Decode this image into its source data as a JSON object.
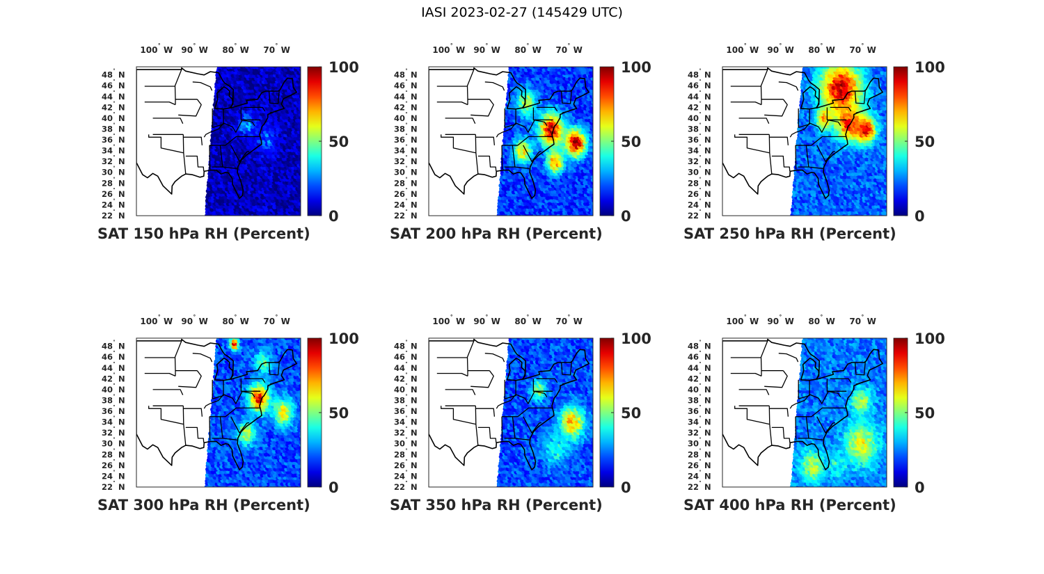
{
  "title": "IASI 2023-02-27 (145429 UTC)",
  "map": {
    "lon_labels": [
      {
        "deg": "100",
        "hemi": "W",
        "lon": -100
      },
      {
        "deg": "90",
        "hemi": "W",
        "lon": -90
      },
      {
        "deg": "80",
        "hemi": "W",
        "lon": -80
      },
      {
        "deg": "70",
        "hemi": "W",
        "lon": -70
      }
    ],
    "lat_labels": [
      {
        "deg": "48",
        "hemi": "N",
        "lat": 48
      },
      {
        "deg": "46",
        "hemi": "N",
        "lat": 46
      },
      {
        "deg": "44",
        "hemi": "N",
        "lat": 44
      },
      {
        "deg": "42",
        "hemi": "N",
        "lat": 42
      },
      {
        "deg": "40",
        "hemi": "N",
        "lat": 40
      },
      {
        "deg": "38",
        "hemi": "N",
        "lat": 38
      },
      {
        "deg": "36",
        "hemi": "N",
        "lat": 36
      },
      {
        "deg": "34",
        "hemi": "N",
        "lat": 34
      },
      {
        "deg": "32",
        "hemi": "N",
        "lat": 32
      },
      {
        "deg": "30",
        "hemi": "N",
        "lat": 30
      },
      {
        "deg": "28",
        "hemi": "N",
        "lat": 28
      },
      {
        "deg": "26",
        "hemi": "N",
        "lat": 26
      },
      {
        "deg": "24",
        "hemi": "N",
        "lat": 24
      },
      {
        "deg": "22",
        "hemi": "N",
        "lat": 22
      }
    ],
    "extent": {
      "lon_min": -106,
      "lon_max": -66,
      "lat_min": 22,
      "lat_max": 49.5
    },
    "colorbar": {
      "min": 0,
      "max": 100,
      "ticks": [
        "100",
        "50",
        "0"
      ],
      "colormap": "jet"
    }
  },
  "panels": [
    {
      "caption": "SAT 150 hPa RH (Percent)",
      "swath_base": 6,
      "moist_regions": [
        {
          "lon": -79,
          "lat": 39,
          "value": 30,
          "radius": 2.0
        },
        {
          "lon": -74,
          "lat": 36,
          "value": 22,
          "radius": 2.5
        }
      ]
    },
    {
      "caption": "SAT 200 hPa RH (Percent)",
      "swath_base": 18,
      "moist_regions": [
        {
          "lon": -76,
          "lat": 38,
          "value": 92,
          "radius": 3.0
        },
        {
          "lon": -70,
          "lat": 35.5,
          "value": 95,
          "radius": 2.5
        },
        {
          "lon": -83,
          "lat": 34,
          "value": 65,
          "radius": 2.2
        },
        {
          "lon": -82,
          "lat": 43,
          "value": 55,
          "radius": 2.5
        },
        {
          "lon": -75,
          "lat": 32,
          "value": 75,
          "radius": 2.0
        }
      ]
    },
    {
      "caption": "SAT 250 hPa RH (Percent)",
      "swath_base": 22,
      "moist_regions": [
        {
          "lon": -77,
          "lat": 45.5,
          "value": 92,
          "radius": 5.0
        },
        {
          "lon": -75,
          "lat": 39,
          "value": 85,
          "radius": 3.0
        },
        {
          "lon": -71,
          "lat": 38,
          "value": 90,
          "radius": 2.5
        },
        {
          "lon": -81,
          "lat": 40,
          "value": 70,
          "radius": 2.0
        }
      ]
    },
    {
      "caption": "SAT 300 hPa RH (Percent)",
      "swath_base": 20,
      "moist_regions": [
        {
          "lon": -76,
          "lat": 38.5,
          "value": 88,
          "radius": 2.5
        },
        {
          "lon": -70,
          "lat": 36,
          "value": 62,
          "radius": 2.5
        },
        {
          "lon": -79,
          "lat": 32,
          "value": 58,
          "radius": 2.2
        },
        {
          "lon": -82,
          "lat": 48.5,
          "value": 95,
          "radius": 1.0
        },
        {
          "lon": -75,
          "lat": 45,
          "value": 48,
          "radius": 2.0
        }
      ]
    },
    {
      "caption": "SAT 350 hPa RH (Percent)",
      "swath_base": 20,
      "moist_regions": [
        {
          "lon": -71,
          "lat": 34,
          "value": 70,
          "radius": 3.0
        },
        {
          "lon": -79,
          "lat": 40,
          "value": 55,
          "radius": 1.8
        },
        {
          "lon": -75,
          "lat": 29,
          "value": 40,
          "radius": 3.0
        }
      ]
    },
    {
      "caption": "SAT 400 hPa RH (Percent)",
      "swath_base": 24,
      "moist_regions": [
        {
          "lon": -72,
          "lat": 30,
          "value": 60,
          "radius": 4.0
        },
        {
          "lon": -84,
          "lat": 26,
          "value": 55,
          "radius": 3.0
        },
        {
          "lon": -72,
          "lat": 38,
          "value": 55,
          "radius": 2.5
        },
        {
          "lon": -78,
          "lat": 26,
          "value": 40,
          "radius": 2.5
        }
      ]
    }
  ]
}
